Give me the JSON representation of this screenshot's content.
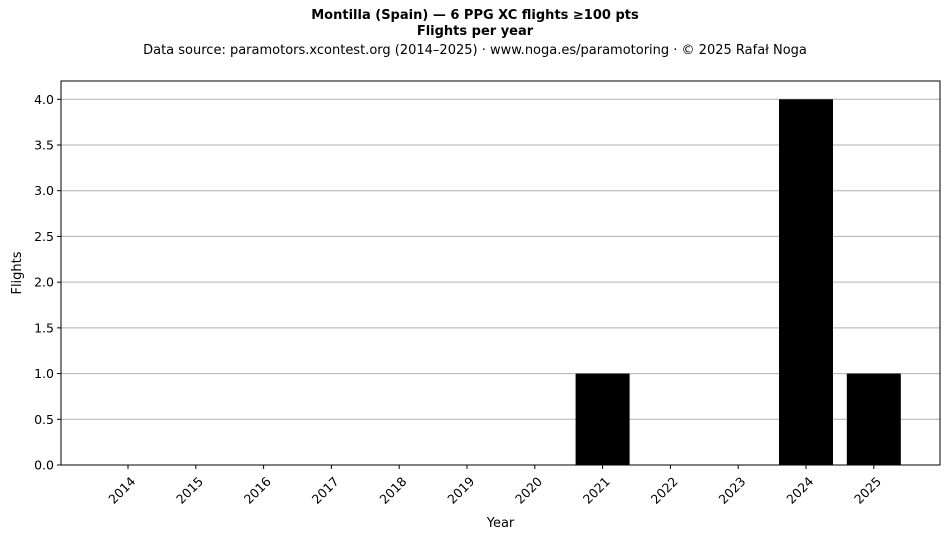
{
  "chart_data": {
    "type": "bar",
    "title": "Montilla (Spain)  —  6 PPG XC flights ≥100 pts",
    "subtitle": "Flights per year",
    "source_line": "Data source: paramotors.xcontest.org (2014–2025)  ·  www.noga.es/paramotoring  ·  © 2025 Rafał Noga",
    "xlabel": "Year",
    "ylabel": "Flights",
    "categories": [
      "2014",
      "2015",
      "2016",
      "2017",
      "2018",
      "2019",
      "2020",
      "2021",
      "2022",
      "2023",
      "2024",
      "2025"
    ],
    "values": [
      0,
      0,
      0,
      0,
      0,
      0,
      0,
      1,
      0,
      0,
      4,
      1
    ],
    "ylim": [
      0,
      4.2
    ],
    "yticks": [
      "0.0",
      "0.5",
      "1.0",
      "1.5",
      "2.0",
      "2.5",
      "3.0",
      "3.5",
      "4.0"
    ],
    "grid": "horizontal",
    "bar_color": "#000000",
    "grid_color": "#b0b0b0"
  }
}
